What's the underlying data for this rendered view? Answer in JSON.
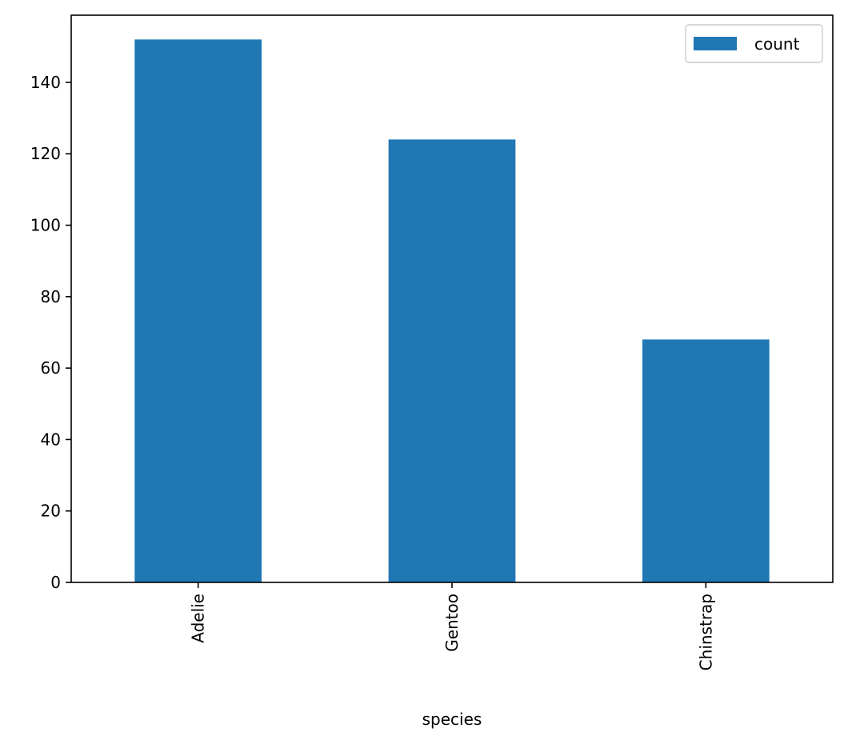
{
  "chart_data": {
    "type": "bar",
    "categories": [
      "Adelie",
      "Gentoo",
      "Chinstrap"
    ],
    "series": [
      {
        "name": "count",
        "values": [
          152,
          124,
          68
        ]
      }
    ],
    "title": "",
    "xlabel": "species",
    "ylabel": "",
    "ylim": [
      0,
      158.8
    ],
    "yticks": [
      0,
      20,
      40,
      60,
      80,
      100,
      120,
      140
    ],
    "x_tick_rotation": "vertical",
    "grid": false,
    "legend": {
      "placement": "top-right",
      "entries": [
        "count"
      ]
    },
    "colors": {
      "bar": "#1f77b4",
      "axes": "#000000",
      "background": "#ffffff",
      "legend_border": "#cccccc"
    }
  }
}
